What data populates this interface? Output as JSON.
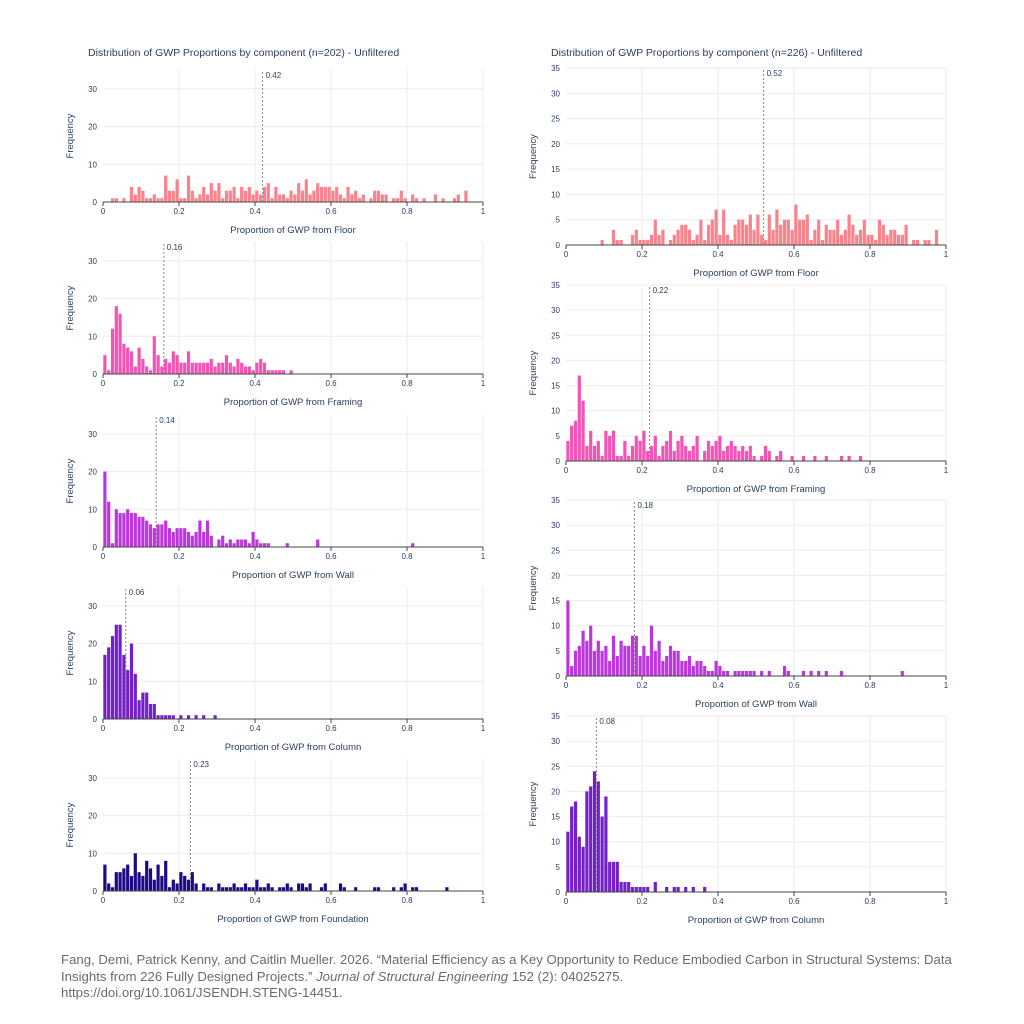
{
  "colors": {
    "floor": "#f8838c",
    "framing": "#f253b4",
    "wall": "#bb37dd",
    "column": "#7420c9",
    "foundation": "#1c0a88",
    "grid": "#ebebeb",
    "axis": "#444444",
    "median_line": "#888888"
  },
  "ylabel": "Frequency",
  "chart_data": [
    {
      "type": "bar",
      "title": "Distribution of GWP Proportions by component (n=202) - Unfiltered",
      "xlabel": "Proportion of GWP from Floor",
      "ylabel": "Frequency",
      "xlim": [
        0,
        1
      ],
      "ylim": [
        0,
        35
      ],
      "xticks": [
        "0",
        "0.2",
        "0.4",
        "0.6",
        "0.8",
        "1"
      ],
      "yticks": [
        "0",
        "10",
        "20",
        "30"
      ],
      "bin_width": 0.01,
      "median": 0.42,
      "median_label": "0.42",
      "color": "floor",
      "grid": true,
      "bins_start": [
        0.02,
        0.03,
        0.05,
        0.07,
        0.08,
        0.09,
        0.1,
        0.11,
        0.12,
        0.13,
        0.14,
        0.15,
        0.16,
        0.17,
        0.18,
        0.19,
        0.2,
        0.21,
        0.22,
        0.23,
        0.24,
        0.25,
        0.26,
        0.27,
        0.28,
        0.29,
        0.3,
        0.31,
        0.32,
        0.33,
        0.34,
        0.35,
        0.36,
        0.37,
        0.38,
        0.39,
        0.4,
        0.41,
        0.42,
        0.43,
        0.44,
        0.45,
        0.46,
        0.47,
        0.48,
        0.49,
        0.5,
        0.51,
        0.52,
        0.53,
        0.54,
        0.55,
        0.56,
        0.57,
        0.58,
        0.59,
        0.6,
        0.61,
        0.62,
        0.63,
        0.64,
        0.65,
        0.66,
        0.67,
        0.68,
        0.7,
        0.71,
        0.72,
        0.73,
        0.74,
        0.76,
        0.77,
        0.78,
        0.79,
        0.81,
        0.82,
        0.84,
        0.87,
        0.89,
        0.92,
        0.93,
        0.95
      ],
      "counts": [
        1,
        1,
        1,
        4,
        2,
        4,
        3,
        1,
        1,
        2,
        1,
        1,
        7,
        3,
        3,
        6,
        1,
        1,
        7,
        3,
        1,
        2,
        4,
        2,
        5,
        3,
        5,
        1,
        3,
        3,
        4,
        1,
        4,
        3,
        4,
        2,
        3,
        2,
        4,
        5,
        1,
        4,
        2,
        2,
        1,
        3,
        2,
        5,
        3,
        6,
        2,
        3,
        5,
        4,
        4,
        4,
        3,
        4,
        2,
        1,
        4,
        2,
        3,
        1,
        2,
        1,
        3,
        3,
        2,
        2,
        1,
        1,
        3,
        1,
        2,
        1,
        1,
        2,
        1,
        1,
        2,
        3
      ]
    },
    {
      "type": "bar",
      "title": "",
      "xlabel": "Proportion of GWP from Framing",
      "ylabel": "Frequency",
      "xlim": [
        0,
        1
      ],
      "ylim": [
        0,
        35
      ],
      "xticks": [
        "0",
        "0.2",
        "0.4",
        "0.6",
        "0.8",
        "1"
      ],
      "yticks": [
        "0",
        "10",
        "20",
        "30"
      ],
      "bin_width": 0.01,
      "median": 0.16,
      "median_label": "0.16",
      "color": "framing",
      "grid": true,
      "bins_start": [
        0.0,
        0.01,
        0.02,
        0.03,
        0.04,
        0.05,
        0.06,
        0.07,
        0.08,
        0.09,
        0.1,
        0.11,
        0.12,
        0.13,
        0.14,
        0.15,
        0.16,
        0.17,
        0.18,
        0.19,
        0.2,
        0.21,
        0.22,
        0.23,
        0.24,
        0.25,
        0.26,
        0.27,
        0.28,
        0.29,
        0.3,
        0.31,
        0.32,
        0.33,
        0.34,
        0.35,
        0.36,
        0.37,
        0.38,
        0.39,
        0.4,
        0.41,
        0.42,
        0.43,
        0.44,
        0.45,
        0.46,
        0.47,
        0.49
      ],
      "counts": [
        5,
        1,
        12,
        18,
        16,
        8,
        7,
        6,
        2,
        7,
        4,
        2,
        1,
        10,
        5,
        2,
        4,
        3,
        6,
        5,
        3,
        3,
        6,
        3,
        3,
        3,
        3,
        3,
        4,
        2,
        3,
        3,
        5,
        3,
        2,
        4,
        3,
        2,
        2,
        1,
        3,
        4,
        3,
        1,
        1,
        1,
        1,
        1,
        1
      ]
    },
    {
      "type": "bar",
      "title": "",
      "xlabel": "Proportion of GWP from Wall",
      "ylabel": "Frequency",
      "xlim": [
        0,
        1
      ],
      "ylim": [
        0,
        35
      ],
      "xticks": [
        "0",
        "0.2",
        "0.4",
        "0.6",
        "0.8",
        "1"
      ],
      "yticks": [
        "0",
        "10",
        "20",
        "30"
      ],
      "bin_width": 0.01,
      "median": 0.14,
      "median_label": "0.14",
      "color": "wall",
      "grid": true,
      "bins_start": [
        0.0,
        0.01,
        0.02,
        0.03,
        0.04,
        0.05,
        0.06,
        0.07,
        0.08,
        0.09,
        0.1,
        0.11,
        0.12,
        0.13,
        0.14,
        0.15,
        0.16,
        0.17,
        0.18,
        0.19,
        0.2,
        0.21,
        0.22,
        0.23,
        0.24,
        0.25,
        0.26,
        0.27,
        0.28,
        0.3,
        0.31,
        0.32,
        0.33,
        0.34,
        0.35,
        0.36,
        0.37,
        0.38,
        0.39,
        0.4,
        0.41,
        0.42,
        0.43,
        0.48,
        0.56,
        0.81
      ],
      "counts": [
        20,
        12,
        1,
        10,
        9,
        9,
        10,
        9,
        9,
        8,
        8,
        7,
        6,
        5,
        6,
        6,
        7,
        5,
        4,
        5,
        5,
        5,
        4,
        3,
        4,
        7,
        4,
        7,
        3,
        2,
        3,
        1,
        2,
        1,
        2,
        2,
        2,
        1,
        4,
        2,
        1,
        1,
        1,
        1,
        2,
        1
      ]
    },
    {
      "type": "bar",
      "title": "",
      "xlabel": "Proportion of GWP from Column",
      "ylabel": "Frequency",
      "xlim": [
        0,
        1
      ],
      "ylim": [
        0,
        35
      ],
      "xticks": [
        "0",
        "0.2",
        "0.4",
        "0.6",
        "0.8",
        "1"
      ],
      "yticks": [
        "0",
        "10",
        "20",
        "30"
      ],
      "bin_width": 0.01,
      "median": 0.06,
      "median_label": "0.06",
      "color": "column",
      "grid": true,
      "bins_start": [
        0.0,
        0.01,
        0.02,
        0.03,
        0.04,
        0.05,
        0.06,
        0.07,
        0.08,
        0.09,
        0.1,
        0.11,
        0.12,
        0.13,
        0.14,
        0.15,
        0.16,
        0.17,
        0.18,
        0.2,
        0.22,
        0.24,
        0.26,
        0.29
      ],
      "counts": [
        17,
        19,
        22,
        25,
        25,
        17,
        13,
        20,
        12,
        5,
        7,
        7,
        4,
        4,
        1,
        1,
        1,
        1,
        1,
        1,
        1,
        1,
        1,
        1
      ]
    },
    {
      "type": "bar",
      "title": "",
      "xlabel": "Proportion of GWP from Foundation",
      "ylabel": "Frequency",
      "xlim": [
        0,
        1
      ],
      "ylim": [
        0,
        35
      ],
      "xticks": [
        "0",
        "0.2",
        "0.4",
        "0.6",
        "0.8",
        "1"
      ],
      "yticks": [
        "0",
        "10",
        "20",
        "30"
      ],
      "bin_width": 0.01,
      "median": 0.23,
      "median_label": "0.23",
      "color": "foundation",
      "grid": true,
      "bins_start": [
        0.0,
        0.01,
        0.02,
        0.03,
        0.04,
        0.05,
        0.06,
        0.07,
        0.08,
        0.09,
        0.1,
        0.11,
        0.12,
        0.13,
        0.14,
        0.15,
        0.16,
        0.17,
        0.18,
        0.19,
        0.2,
        0.21,
        0.22,
        0.23,
        0.24,
        0.26,
        0.27,
        0.28,
        0.3,
        0.31,
        0.32,
        0.33,
        0.34,
        0.35,
        0.36,
        0.37,
        0.38,
        0.39,
        0.4,
        0.41,
        0.42,
        0.43,
        0.44,
        0.46,
        0.47,
        0.48,
        0.49,
        0.51,
        0.52,
        0.53,
        0.54,
        0.57,
        0.58,
        0.62,
        0.63,
        0.66,
        0.71,
        0.72,
        0.76,
        0.78,
        0.79,
        0.81,
        0.82,
        0.9
      ],
      "counts": [
        7,
        2,
        1,
        5,
        5,
        6,
        7,
        4,
        10,
        5,
        4,
        8,
        6,
        3,
        7,
        4,
        8,
        1,
        3,
        2,
        5,
        4,
        3,
        5,
        2,
        2,
        1,
        1,
        2,
        1,
        1,
        1,
        2,
        1,
        1,
        2,
        1,
        1,
        3,
        1,
        1,
        2,
        1,
        1,
        1,
        2,
        1,
        2,
        2,
        1,
        2,
        1,
        2,
        2,
        1,
        1,
        1,
        1,
        1,
        1,
        2,
        1,
        1,
        1
      ]
    },
    {
      "type": "bar",
      "title": "Distribution of GWP Proportions by component (n=226) - Unfiltered",
      "xlabel": "Proportion of GWP from Floor",
      "ylabel": "Frequency",
      "xlim": [
        0,
        1
      ],
      "ylim": [
        0,
        35
      ],
      "xticks": [
        "0",
        "0.2",
        "0.4",
        "0.6",
        "0.8",
        "1"
      ],
      "yticks": [
        "0",
        "5",
        "10",
        "15",
        "20",
        "25",
        "30",
        "35"
      ],
      "bin_width": 0.01,
      "median": 0.52,
      "median_label": "0.52",
      "color": "floor",
      "grid": true,
      "bins_start": [
        0.09,
        0.12,
        0.13,
        0.14,
        0.17,
        0.18,
        0.19,
        0.2,
        0.21,
        0.22,
        0.23,
        0.24,
        0.25,
        0.27,
        0.28,
        0.29,
        0.3,
        0.31,
        0.32,
        0.33,
        0.34,
        0.35,
        0.36,
        0.37,
        0.38,
        0.39,
        0.4,
        0.41,
        0.42,
        0.43,
        0.44,
        0.45,
        0.46,
        0.47,
        0.48,
        0.49,
        0.5,
        0.51,
        0.52,
        0.53,
        0.54,
        0.55,
        0.56,
        0.57,
        0.58,
        0.59,
        0.6,
        0.61,
        0.62,
        0.63,
        0.64,
        0.65,
        0.66,
        0.67,
        0.68,
        0.69,
        0.7,
        0.71,
        0.72,
        0.73,
        0.74,
        0.75,
        0.76,
        0.77,
        0.78,
        0.79,
        0.8,
        0.81,
        0.82,
        0.83,
        0.84,
        0.85,
        0.86,
        0.87,
        0.88,
        0.89,
        0.91,
        0.92,
        0.94,
        0.95,
        0.97
      ],
      "counts": [
        1,
        3,
        1,
        1,
        2,
        3,
        1,
        1,
        1,
        2,
        5,
        2,
        3,
        1,
        2,
        3,
        4,
        4,
        3,
        1,
        2,
        5,
        1,
        4,
        5,
        7,
        2,
        7,
        2,
        1,
        4,
        5,
        5,
        4,
        6,
        3,
        6,
        2,
        1,
        6,
        3,
        7,
        4,
        5,
        5,
        3,
        8,
        5,
        5,
        6,
        1,
        3,
        5,
        1,
        4,
        3,
        3,
        5,
        2,
        3,
        6,
        4,
        2,
        3,
        5,
        2,
        2,
        1,
        5,
        4,
        2,
        3,
        3,
        2,
        2,
        4,
        1,
        1,
        1,
        1,
        3
      ]
    },
    {
      "type": "bar",
      "title": "",
      "xlabel": "Proportion of GWP from Framing",
      "ylabel": "Frequency",
      "xlim": [
        0,
        1
      ],
      "ylim": [
        0,
        35
      ],
      "xticks": [
        "0",
        "0.2",
        "0.4",
        "0.6",
        "0.8",
        "1"
      ],
      "yticks": [
        "0",
        "5",
        "10",
        "15",
        "20",
        "25",
        "30",
        "35"
      ],
      "bin_width": 0.01,
      "median": 0.22,
      "median_label": "0.22",
      "color": "framing",
      "grid": true,
      "bins_start": [
        0.0,
        0.01,
        0.02,
        0.03,
        0.04,
        0.05,
        0.06,
        0.07,
        0.08,
        0.09,
        0.1,
        0.11,
        0.12,
        0.13,
        0.14,
        0.15,
        0.16,
        0.17,
        0.18,
        0.19,
        0.2,
        0.21,
        0.22,
        0.23,
        0.24,
        0.25,
        0.26,
        0.27,
        0.28,
        0.29,
        0.3,
        0.31,
        0.32,
        0.33,
        0.34,
        0.36,
        0.37,
        0.38,
        0.39,
        0.4,
        0.41,
        0.42,
        0.43,
        0.44,
        0.45,
        0.46,
        0.47,
        0.48,
        0.49,
        0.51,
        0.52,
        0.53,
        0.55,
        0.56,
        0.59,
        0.62,
        0.65,
        0.68,
        0.72,
        0.74,
        0.77
      ],
      "counts": [
        4,
        7,
        8,
        17,
        12,
        3,
        6,
        3,
        4,
        1,
        6,
        5,
        6,
        1,
        1,
        4,
        1,
        3,
        5,
        4,
        6,
        2,
        3,
        5,
        1,
        3,
        4,
        6,
        2,
        4,
        5,
        3,
        2,
        3,
        5,
        2,
        4,
        3,
        4,
        5,
        2,
        3,
        4,
        3,
        2,
        3,
        2,
        3,
        1,
        1,
        3,
        2,
        1,
        2,
        1,
        1,
        1,
        1,
        1,
        1,
        1
      ]
    },
    {
      "type": "bar",
      "title": "",
      "xlabel": "Proportion of GWP from Wall",
      "ylabel": "Frequency",
      "xlim": [
        0,
        1
      ],
      "ylim": [
        0,
        35
      ],
      "xticks": [
        "0",
        "0.2",
        "0.4",
        "0.6",
        "0.8",
        "1"
      ],
      "yticks": [
        "0",
        "5",
        "10",
        "15",
        "20",
        "25",
        "30",
        "35"
      ],
      "bin_width": 0.01,
      "median": 0.18,
      "median_label": "0.18",
      "color": "wall",
      "grid": true,
      "bins_start": [
        0.0,
        0.01,
        0.02,
        0.03,
        0.04,
        0.05,
        0.06,
        0.07,
        0.08,
        0.09,
        0.1,
        0.11,
        0.12,
        0.13,
        0.14,
        0.15,
        0.16,
        0.17,
        0.18,
        0.19,
        0.2,
        0.21,
        0.22,
        0.23,
        0.24,
        0.25,
        0.26,
        0.27,
        0.28,
        0.29,
        0.3,
        0.31,
        0.32,
        0.33,
        0.34,
        0.35,
        0.36,
        0.37,
        0.38,
        0.39,
        0.4,
        0.41,
        0.42,
        0.44,
        0.45,
        0.46,
        0.47,
        0.48,
        0.49,
        0.51,
        0.53,
        0.57,
        0.58,
        0.62,
        0.64,
        0.66,
        0.68,
        0.72,
        0.88
      ],
      "counts": [
        15,
        2,
        5,
        6,
        9,
        7,
        10,
        5,
        7,
        5,
        6,
        3,
        8,
        4,
        7,
        6,
        6,
        8,
        8,
        4,
        6,
        4,
        10,
        5,
        7,
        3,
        4,
        6,
        5,
        5,
        3,
        3,
        4,
        2,
        3,
        3,
        2,
        1,
        1,
        3,
        2,
        1,
        1,
        1,
        1,
        1,
        1,
        1,
        1,
        1,
        1,
        2,
        1,
        1,
        1,
        1,
        1,
        1,
        1
      ]
    },
    {
      "type": "bar",
      "title": "",
      "xlabel": "Proportion of GWP from Column",
      "ylabel": "Frequency",
      "xlim": [
        0,
        1
      ],
      "ylim": [
        0,
        35
      ],
      "xticks": [
        "0",
        "0.2",
        "0.4",
        "0.6",
        "0.8",
        "1"
      ],
      "yticks": [
        "0",
        "5",
        "10",
        "15",
        "20",
        "25",
        "30",
        "35"
      ],
      "bin_width": 0.01,
      "median": 0.08,
      "median_label": "0.08",
      "color": "column",
      "grid": true,
      "bins_start": [
        0.0,
        0.01,
        0.02,
        0.03,
        0.04,
        0.05,
        0.06,
        0.07,
        0.08,
        0.09,
        0.1,
        0.11,
        0.12,
        0.13,
        0.14,
        0.15,
        0.16,
        0.17,
        0.18,
        0.19,
        0.2,
        0.21,
        0.23,
        0.26,
        0.28,
        0.29,
        0.31,
        0.33,
        0.36
      ],
      "counts": [
        12,
        17,
        18,
        11,
        9,
        20,
        21,
        24,
        22,
        15,
        19,
        6,
        6,
        6,
        2,
        2,
        2,
        1,
        1,
        1,
        1,
        1,
        2,
        1,
        1,
        1,
        1,
        1,
        1
      ]
    }
  ],
  "citation": {
    "authors": "Fang, Demi, Patrick Kenny, and Caitlin Mueller. 2026. “Material Efficiency as a Key Opportunity to Reduce Embodied Carbon in Structural Systems: Data Insights from 226 Fully Designed Projects.”",
    "journal": "Journal of Structural Engineering",
    "details": "152 (2): 04025275.",
    "doi": "https://doi.org/10.1061/JSENDH.STENG-14451."
  }
}
